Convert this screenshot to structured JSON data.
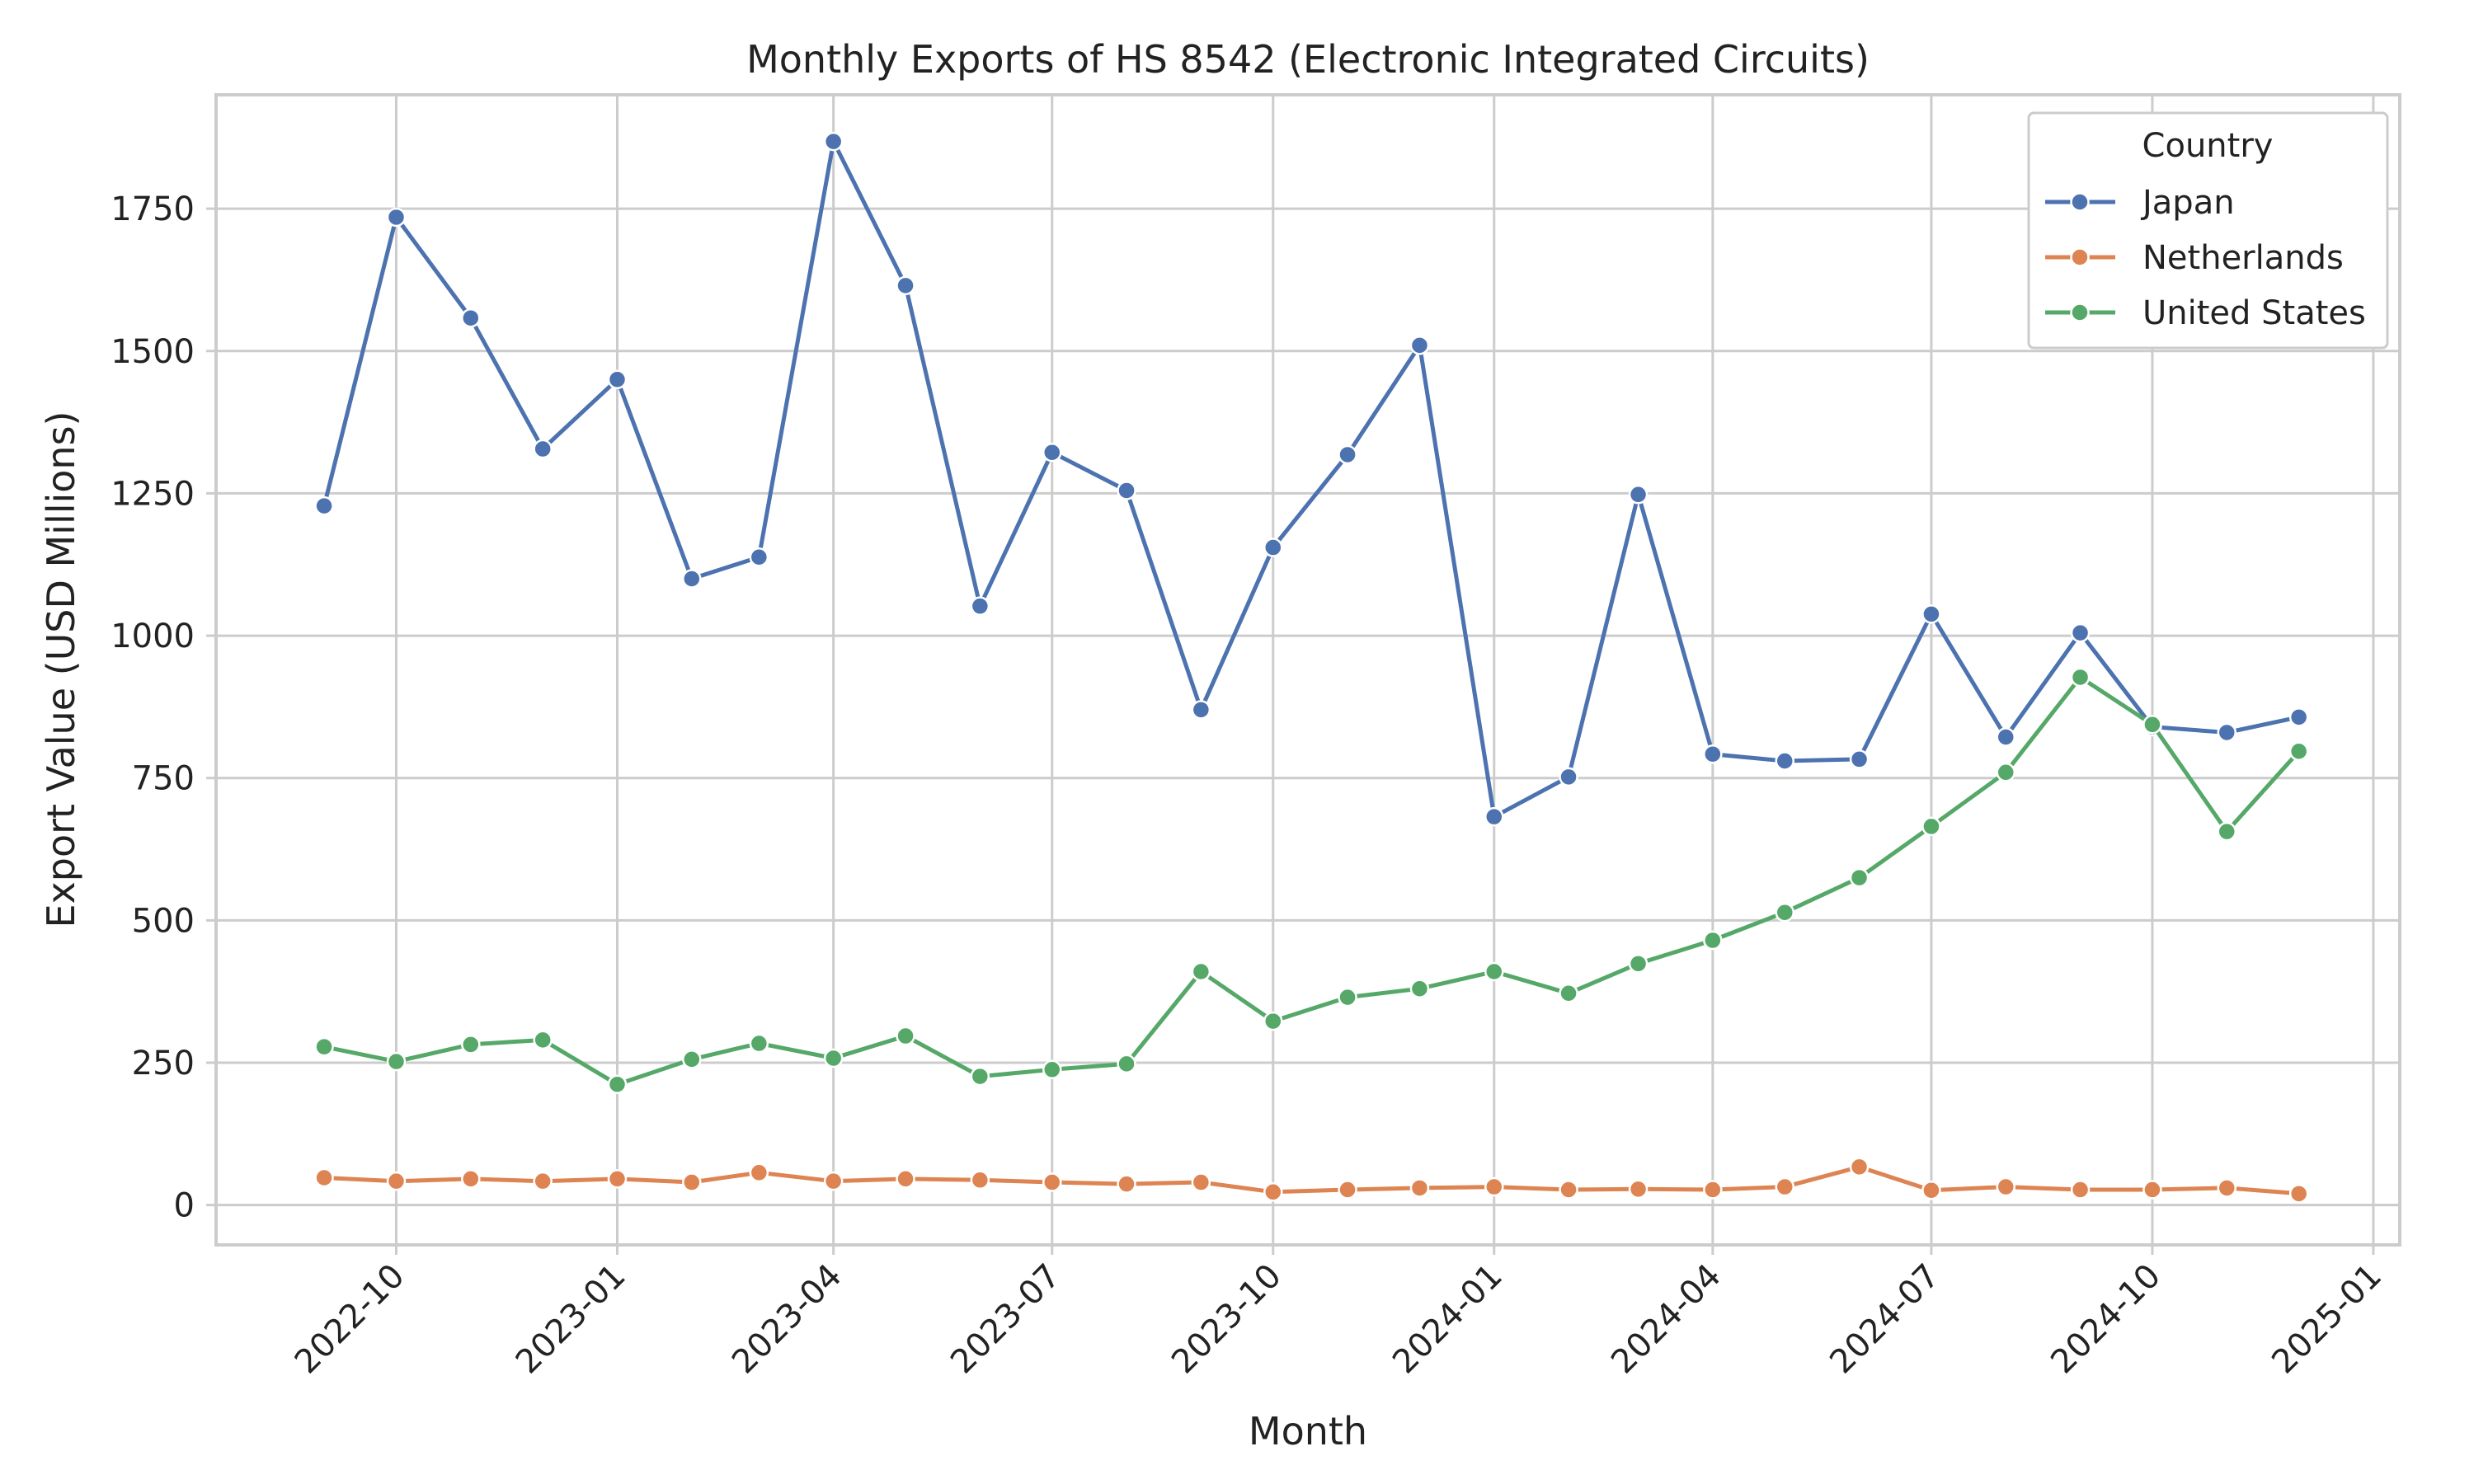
{
  "chart_data": {
    "type": "line",
    "title": "Monthly Exports of HS 8542 (Electronic Integrated Circuits)",
    "xlabel": "Month",
    "ylabel": "Export Value (USD Millions)",
    "ylim": [
      -70,
      1950
    ],
    "xlim": [
      "2022-07-18",
      "2025-01-12"
    ],
    "grid": true,
    "legend": {
      "title": "Country",
      "position": "top-right"
    },
    "x": [
      "2022-09",
      "2022-10",
      "2022-11",
      "2022-12",
      "2023-01",
      "2023-02",
      "2023-03",
      "2023-04",
      "2023-05",
      "2023-06",
      "2023-07",
      "2023-08",
      "2023-09",
      "2023-10",
      "2023-11",
      "2023-12",
      "2024-01",
      "2024-02",
      "2024-03",
      "2024-04",
      "2024-05",
      "2024-06",
      "2024-07",
      "2024-08",
      "2024-09",
      "2024-10",
      "2024-11",
      "2024-12"
    ],
    "x_ticks": [
      "2022-10",
      "2023-01",
      "2023-04",
      "2023-07",
      "2023-10",
      "2024-01",
      "2024-04",
      "2024-07",
      "2024-10",
      "2025-01"
    ],
    "y_ticks": [
      0,
      250,
      500,
      750,
      1000,
      1250,
      1500,
      1750
    ],
    "series": [
      {
        "name": "Japan",
        "color": "#4c72b0",
        "values": [
          1228,
          1735,
          1558,
          1328,
          1450,
          1100,
          1138,
          1868,
          1615,
          1052,
          1322,
          1255,
          870,
          1155,
          1318,
          1510,
          682,
          752,
          1248,
          792,
          780,
          783,
          1038,
          822,
          1005,
          840,
          830,
          857
        ]
      },
      {
        "name": "Netherlands",
        "color": "#dd8452",
        "values": [
          48,
          42,
          46,
          42,
          46,
          40,
          57,
          42,
          46,
          44,
          40,
          37,
          40,
          23,
          27,
          30,
          32,
          27,
          28,
          27,
          32,
          67,
          26,
          32,
          27,
          27,
          30,
          20
        ]
      },
      {
        "name": "United States",
        "color": "#55a868",
        "values": [
          278,
          252,
          282,
          290,
          212,
          256,
          284,
          258,
          297,
          226,
          238,
          248,
          410,
          323,
          365,
          380,
          410,
          372,
          424,
          465,
          514,
          575,
          665,
          760,
          927,
          844,
          656,
          797
        ]
      }
    ]
  }
}
